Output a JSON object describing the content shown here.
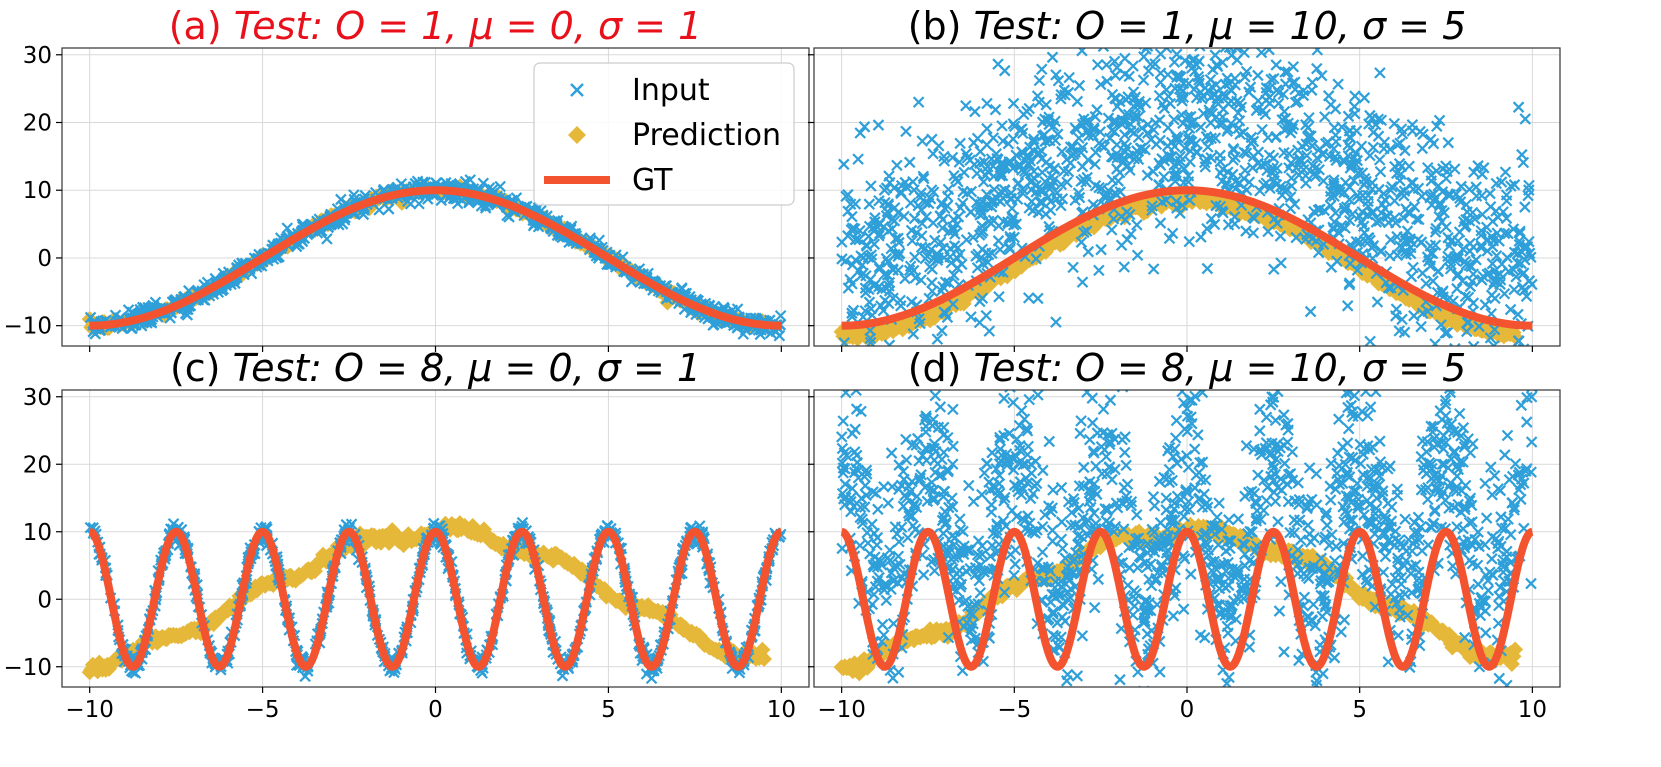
{
  "figure": {
    "legend": {
      "location": "upper right of panel (a)",
      "entries": [
        {
          "label": "Input",
          "marker": "x",
          "color": "#2e9fd8"
        },
        {
          "label": "Prediction",
          "marker": "diamond",
          "color": "#e6b83a"
        },
        {
          "label": "GT",
          "marker": "line",
          "color": "#f4532f"
        }
      ]
    }
  },
  "chart_data": [
    {
      "id": "a",
      "type": "scatter",
      "title_prefix": "(a) ",
      "title_math": "Test: O = 1, μ = 0, σ = 1",
      "title_color": "#e8111b",
      "frequency_O": 1,
      "noise_mu": 0,
      "noise_sigma": 1,
      "xlim": [
        -10.8,
        10.8
      ],
      "ylim": [
        -13,
        31
      ],
      "xticks": [
        -10,
        -5,
        0,
        5,
        10
      ],
      "yticks": [
        -10,
        0,
        10,
        20,
        30
      ],
      "show_xtick_labels": false,
      "show_ytick_labels": true,
      "gt": "y = 10*cos(O*x*pi/10)",
      "prediction_follows": "gt",
      "prediction_offset": 0,
      "grid": true
    },
    {
      "id": "b",
      "type": "scatter",
      "title_prefix": "(b) ",
      "title_math": "Test: O = 1, μ = 10, σ = 5",
      "title_color": "#000000",
      "frequency_O": 1,
      "noise_mu": 10,
      "noise_sigma": 5,
      "xlim": [
        -10.8,
        10.8
      ],
      "ylim": [
        -13,
        31
      ],
      "xticks": [
        -10,
        -5,
        0,
        5,
        10
      ],
      "yticks": [
        -10,
        0,
        10,
        20,
        30
      ],
      "show_xtick_labels": false,
      "show_ytick_labels": false,
      "gt": "y = 10*cos(O*x*pi/10)",
      "prediction_follows": "gt",
      "prediction_offset": -1.5,
      "grid": true
    },
    {
      "id": "c",
      "type": "scatter",
      "title_prefix": "(c) ",
      "title_math": "Test: O = 8, μ = 0, σ = 1",
      "title_color": "#000000",
      "frequency_O": 8,
      "noise_mu": 0,
      "noise_sigma": 1,
      "xlim": [
        -10.8,
        10.8
      ],
      "ylim": [
        -13,
        31
      ],
      "xticks": [
        -10,
        -5,
        0,
        5,
        10
      ],
      "yticks": [
        -10,
        0,
        10,
        20,
        30
      ],
      "show_xtick_labels": true,
      "show_ytick_labels": true,
      "gt": "y = 10*cos(O*x*pi/10)",
      "prediction_follows": "low-frequency cos",
      "prediction_offset": 0,
      "grid": true
    },
    {
      "id": "d",
      "type": "scatter",
      "title_prefix": "(d) ",
      "title_math": "Test: O = 8, μ = 10, σ = 5",
      "title_color": "#000000",
      "frequency_O": 8,
      "noise_mu": 10,
      "noise_sigma": 5,
      "xlim": [
        -10.8,
        10.8
      ],
      "ylim": [
        -13,
        31
      ],
      "xticks": [
        -10,
        -5,
        0,
        5,
        10
      ],
      "yticks": [
        -10,
        0,
        10,
        20,
        30
      ],
      "show_xtick_labels": true,
      "show_ytick_labels": false,
      "gt": "y = 10*cos(O*x*pi/10)",
      "prediction_follows": "low-frequency cos",
      "prediction_offset": 0,
      "grid": true
    }
  ],
  "tick_labels": {
    "x": [
      "−10",
      "−5",
      "0",
      "5",
      "10"
    ],
    "y": [
      "−10",
      "0",
      "10",
      "20",
      "30"
    ]
  }
}
